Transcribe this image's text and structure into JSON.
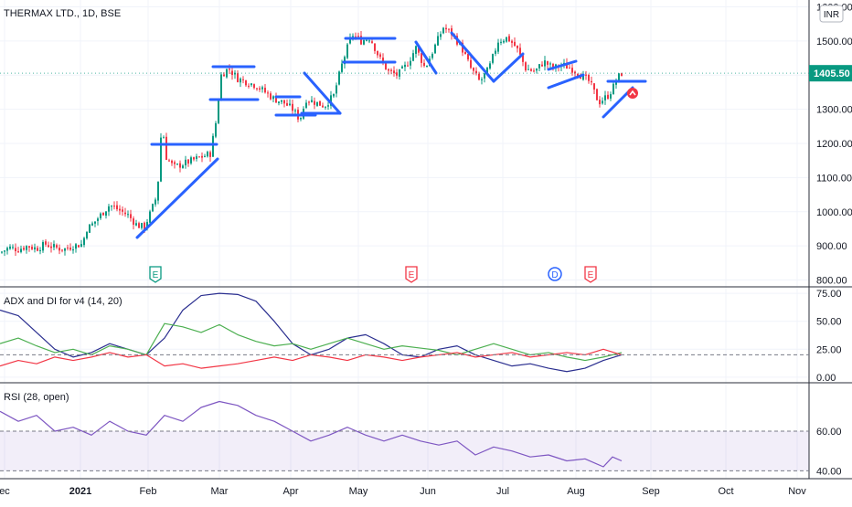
{
  "chart_data": [
    {
      "type": "candlestick",
      "title": "THERMAX LTD., 1D, BSE",
      "currency_badge": "INR",
      "last_price": "1405.50",
      "y_ticks": [
        "1600.00",
        "1500.00",
        "1400.00",
        "1300.00",
        "1200.00",
        "1100.00",
        "1000.00",
        "900.00",
        "800.00"
      ],
      "ylim": [
        780,
        1620
      ],
      "price_path": [
        [
          0,
          880
        ],
        [
          10,
          895
        ],
        [
          20,
          890
        ],
        [
          30,
          900
        ],
        [
          40,
          892
        ],
        [
          50,
          905
        ],
        [
          60,
          895
        ],
        [
          70,
          890
        ],
        [
          80,
          900
        ],
        [
          90,
          905
        ],
        [
          95,
          950
        ],
        [
          100,
          960
        ],
        [
          110,
          990
        ],
        [
          120,
          1020
        ],
        [
          130,
          1005
        ],
        [
          140,
          990
        ],
        [
          150,
          960
        ],
        [
          158,
          955
        ],
        [
          165,
          1000
        ],
        [
          172,
          1050
        ],
        [
          177,
          1260
        ],
        [
          182,
          1160
        ],
        [
          190,
          1130
        ],
        [
          200,
          1140
        ],
        [
          210,
          1150
        ],
        [
          220,
          1160
        ],
        [
          230,
          1170
        ],
        [
          236,
          1260
        ],
        [
          242,
          1400
        ],
        [
          250,
          1420
        ],
        [
          260,
          1390
        ],
        [
          270,
          1380
        ],
        [
          280,
          1370
        ],
        [
          290,
          1350
        ],
        [
          300,
          1330
        ],
        [
          310,
          1320
        ],
        [
          320,
          1300
        ],
        [
          328,
          1270
        ],
        [
          335,
          1330
        ],
        [
          345,
          1320
        ],
        [
          355,
          1310
        ],
        [
          365,
          1340
        ],
        [
          375,
          1440
        ],
        [
          385,
          1520
        ],
        [
          395,
          1500
        ],
        [
          405,
          1510
        ],
        [
          415,
          1450
        ],
        [
          425,
          1410
        ],
        [
          435,
          1400
        ],
        [
          445,
          1430
        ],
        [
          455,
          1480
        ],
        [
          465,
          1420
        ],
        [
          475,
          1480
        ],
        [
          485,
          1540
        ],
        [
          495,
          1520
        ],
        [
          505,
          1480
        ],
        [
          515,
          1420
        ],
        [
          525,
          1380
        ],
        [
          535,
          1420
        ],
        [
          545,
          1500
        ],
        [
          555,
          1510
        ],
        [
          565,
          1480
        ],
        [
          575,
          1420
        ],
        [
          585,
          1410
        ],
        [
          595,
          1440
        ],
        [
          605,
          1420
        ],
        [
          615,
          1430
        ],
        [
          625,
          1420
        ],
        [
          635,
          1400
        ],
        [
          645,
          1380
        ],
        [
          655,
          1320
        ],
        [
          665,
          1340
        ],
        [
          670,
          1360
        ],
        [
          675,
          1390
        ],
        [
          680,
          1405
        ]
      ],
      "event_markers": [
        {
          "text": "E",
          "color": "#089981",
          "x_pos": 170
        },
        {
          "text": "E",
          "color": "#f23645",
          "x_pos": 450
        },
        {
          "text": "D",
          "color": "#2962ff",
          "x_pos": 607,
          "round": true
        },
        {
          "text": "E",
          "color": "#f23645",
          "x_pos": 646
        }
      ],
      "drawings": [
        [
          [
            150,
            260
          ],
          [
            238,
            174
          ]
        ],
        [
          [
            166,
            158
          ],
          [
            237,
            158
          ]
        ],
        [
          [
            233,
            73
          ],
          [
            278,
            73
          ]
        ],
        [
          [
            230,
            109
          ],
          [
            282,
            109
          ]
        ],
        [
          [
            302,
            106
          ],
          [
            328,
            106
          ]
        ],
        [
          [
            302,
            126
          ],
          [
            345,
            126
          ]
        ],
        [
          [
            330,
            124
          ],
          [
            372,
            124
          ]
        ],
        [
          [
            333,
            80
          ],
          [
            372,
            124
          ]
        ],
        [
          [
            378,
            42
          ],
          [
            432,
            42
          ]
        ],
        [
          [
            376,
            68
          ],
          [
            432,
            68
          ]
        ],
        [
          [
            455,
            46
          ],
          [
            477,
            80
          ]
        ],
        [
          [
            494,
            36
          ],
          [
            540,
            89
          ]
        ],
        [
          [
            540,
            89
          ],
          [
            572,
            59
          ]
        ],
        [
          [
            600,
            76
          ],
          [
            630,
            67
          ]
        ],
        [
          [
            600,
            96
          ],
          [
            638,
            82
          ]
        ],
        [
          [
            665,
            89
          ],
          [
            706,
            89
          ]
        ],
        [
          [
            660,
            128
          ],
          [
            692,
            96
          ]
        ]
      ],
      "ancillary_line_colors": [
        "#2962ff"
      ]
    },
    {
      "type": "line",
      "title": "ADX and DI for v4 (14, 20)",
      "y_ticks": [
        "75.00",
        "50.00",
        "25.00",
        "0.00"
      ],
      "ylim": [
        -5,
        80
      ],
      "threshold": 20,
      "series": [
        {
          "color": "#2a2e8f",
          "values": [
            [
              0,
              60
            ],
            [
              20,
              55
            ],
            [
              40,
              40
            ],
            [
              60,
              25
            ],
            [
              80,
              18
            ],
            [
              100,
              22
            ],
            [
              120,
              30
            ],
            [
              140,
              25
            ],
            [
              160,
              20
            ],
            [
              180,
              35
            ],
            [
              200,
              60
            ],
            [
              220,
              73
            ],
            [
              240,
              75
            ],
            [
              260,
              74
            ],
            [
              280,
              68
            ],
            [
              300,
              50
            ],
            [
              320,
              30
            ],
            [
              340,
              20
            ],
            [
              360,
              25
            ],
            [
              380,
              35
            ],
            [
              400,
              38
            ],
            [
              420,
              30
            ],
            [
              440,
              20
            ],
            [
              460,
              18
            ],
            [
              480,
              25
            ],
            [
              500,
              28
            ],
            [
              520,
              20
            ],
            [
              540,
              15
            ],
            [
              560,
              10
            ],
            [
              580,
              12
            ],
            [
              600,
              8
            ],
            [
              620,
              5
            ],
            [
              640,
              8
            ],
            [
              660,
              15
            ],
            [
              680,
              20
            ]
          ]
        },
        {
          "color": "#4caf50",
          "values": [
            [
              0,
              30
            ],
            [
              20,
              35
            ],
            [
              40,
              28
            ],
            [
              60,
              22
            ],
            [
              80,
              25
            ],
            [
              100,
              20
            ],
            [
              120,
              28
            ],
            [
              140,
              25
            ],
            [
              160,
              20
            ],
            [
              180,
              48
            ],
            [
              200,
              45
            ],
            [
              220,
              40
            ],
            [
              240,
              47
            ],
            [
              260,
              38
            ],
            [
              280,
              32
            ],
            [
              300,
              28
            ],
            [
              320,
              30
            ],
            [
              340,
              25
            ],
            [
              360,
              30
            ],
            [
              380,
              35
            ],
            [
              400,
              30
            ],
            [
              420,
              25
            ],
            [
              440,
              28
            ],
            [
              460,
              26
            ],
            [
              480,
              24
            ],
            [
              500,
              20
            ],
            [
              520,
              25
            ],
            [
              540,
              30
            ],
            [
              560,
              25
            ],
            [
              580,
              20
            ],
            [
              600,
              22
            ],
            [
              620,
              18
            ],
            [
              640,
              15
            ],
            [
              660,
              18
            ],
            [
              680,
              22
            ]
          ]
        },
        {
          "color": "#f23645",
          "values": [
            [
              0,
              10
            ],
            [
              20,
              15
            ],
            [
              40,
              12
            ],
            [
              60,
              18
            ],
            [
              80,
              15
            ],
            [
              100,
              18
            ],
            [
              120,
              22
            ],
            [
              140,
              18
            ],
            [
              160,
              20
            ],
            [
              180,
              10
            ],
            [
              200,
              12
            ],
            [
              220,
              8
            ],
            [
              240,
              10
            ],
            [
              260,
              12
            ],
            [
              280,
              15
            ],
            [
              300,
              18
            ],
            [
              320,
              15
            ],
            [
              340,
              20
            ],
            [
              360,
              18
            ],
            [
              380,
              15
            ],
            [
              400,
              20
            ],
            [
              420,
              18
            ],
            [
              440,
              15
            ],
            [
              460,
              18
            ],
            [
              480,
              20
            ],
            [
              500,
              22
            ],
            [
              520,
              18
            ],
            [
              540,
              20
            ],
            [
              560,
              22
            ],
            [
              580,
              18
            ],
            [
              600,
              20
            ],
            [
              620,
              22
            ],
            [
              640,
              20
            ],
            [
              660,
              25
            ],
            [
              680,
              20
            ]
          ]
        }
      ]
    },
    {
      "type": "line",
      "title": "RSI (28, open)",
      "y_ticks": [
        "60.00",
        "40.00"
      ],
      "ylim": [
        36,
        84
      ],
      "band": [
        40,
        60
      ],
      "series": [
        {
          "color": "#7e57c2",
          "values": [
            [
              0,
              70
            ],
            [
              20,
              65
            ],
            [
              40,
              68
            ],
            [
              60,
              60
            ],
            [
              80,
              62
            ],
            [
              100,
              58
            ],
            [
              120,
              65
            ],
            [
              140,
              60
            ],
            [
              160,
              58
            ],
            [
              180,
              68
            ],
            [
              200,
              65
            ],
            [
              220,
              72
            ],
            [
              240,
              75
            ],
            [
              260,
              73
            ],
            [
              280,
              68
            ],
            [
              300,
              65
            ],
            [
              320,
              60
            ],
            [
              340,
              55
            ],
            [
              360,
              58
            ],
            [
              380,
              62
            ],
            [
              400,
              58
            ],
            [
              420,
              55
            ],
            [
              440,
              58
            ],
            [
              460,
              55
            ],
            [
              480,
              53
            ],
            [
              500,
              55
            ],
            [
              520,
              48
            ],
            [
              540,
              52
            ],
            [
              560,
              50
            ],
            [
              580,
              47
            ],
            [
              600,
              48
            ],
            [
              620,
              45
            ],
            [
              640,
              46
            ],
            [
              660,
              42
            ],
            [
              670,
              47
            ],
            [
              680,
              45
            ]
          ]
        }
      ]
    }
  ],
  "x_axis": [
    "ec",
    "2021",
    "Feb",
    "Mar",
    "Apr",
    "May",
    "Jun",
    "Jul",
    "Aug",
    "Sep",
    "Oct",
    "Nov"
  ],
  "colors": {
    "grid": "#f0f3fa",
    "axis": "#2a2e39",
    "bull": "#089981",
    "bear": "#f23645",
    "line": "#2962ff"
  }
}
